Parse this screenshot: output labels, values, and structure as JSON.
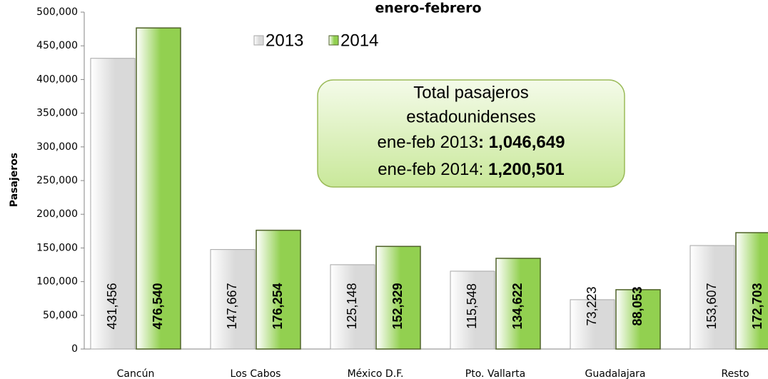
{
  "chart_data": {
    "type": "bar",
    "title": "enero-febrero",
    "y_label": "Pasajeros",
    "categories": [
      "Cancún",
      "Los Cabos",
      "México D.F.",
      "Pto. Vallarta",
      "Guadalajara",
      "Resto"
    ],
    "series": [
      {
        "name": "2013",
        "color": "#d9d9d9",
        "values": [
          431456,
          147667,
          125148,
          115548,
          73223,
          153607
        ],
        "value_labels": [
          "431,456",
          "147,667",
          "125,148",
          "115,548",
          "73,223",
          "153,607"
        ]
      },
      {
        "name": "2014",
        "color": "#92d050",
        "values": [
          476540,
          176254,
          152329,
          134622,
          88053,
          172703
        ],
        "value_labels": [
          "476,540",
          "176,254",
          "152,329",
          "134,622",
          "88,053",
          "172,703"
        ]
      }
    ],
    "ylim": [
      0,
      500000
    ],
    "yticks": [
      0,
      {
        "value": 50000,
        "label": "50,000"
      },
      {
        "value": 100000,
        "label": "100,000"
      },
      {
        "value": 150000,
        "label": "150,000"
      },
      {
        "value": 200000,
        "label": "200,000"
      },
      {
        "value": 250000,
        "label": "250,000"
      },
      {
        "value": 300000,
        "label": "300,000"
      },
      {
        "value": 350000,
        "label": "350,000"
      },
      {
        "value": 400000,
        "label": "400,000"
      },
      {
        "value": 450000,
        "label": "450,000"
      },
      {
        "value": 500000,
        "label": "500,000"
      }
    ],
    "legend": "top",
    "annotation": {
      "lines": [
        "Total pasajeros",
        "estadounidenses"
      ],
      "total_2013": [
        "ene-feb 2013",
        ": 1,046,649"
      ],
      "total_2014": [
        "ene-feb 2014: ",
        "1,200,501"
      ]
    }
  }
}
